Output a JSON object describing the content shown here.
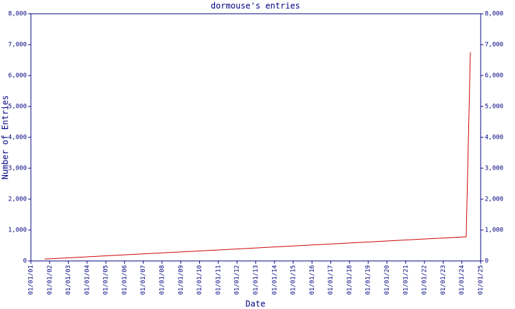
{
  "chart_data": {
    "type": "line",
    "title": "dormouse's entries",
    "x_label": "Date",
    "y_label": "Number of Entries",
    "x": [
      "09/25/01",
      "03/25/24",
      "06/14/24"
    ],
    "series": [
      {
        "name": "entries",
        "color": "#cc0000",
        "values": [
          60,
          780,
          6750
        ]
      }
    ],
    "xlim": [
      "01/01/01",
      "01/01/25"
    ],
    "xticks": [
      "01/01/01",
      "01/01/02",
      "01/01/03",
      "01/01/04",
      "01/01/05",
      "01/01/06",
      "01/01/07",
      "01/01/08",
      "01/01/09",
      "01/01/10",
      "01/01/11",
      "01/01/12",
      "01/01/13",
      "01/01/14",
      "01/01/15",
      "01/01/16",
      "01/01/17",
      "01/01/18",
      "01/01/19",
      "01/01/20",
      "01/01/21",
      "01/01/22",
      "01/01/23",
      "01/01/24",
      "01/01/25"
    ],
    "ylim": [
      0,
      8000
    ],
    "yticks": [
      0,
      {
        "value": 1000,
        "label": "1,000"
      },
      {
        "value": 2000,
        "label": "2,000"
      },
      {
        "value": 3000,
        "label": "3,000"
      },
      {
        "value": 4000,
        "label": "4,000"
      },
      {
        "value": 5000,
        "label": "5,000"
      },
      {
        "value": 6000,
        "label": "6,000"
      },
      {
        "value": 7000,
        "label": "7,000"
      },
      {
        "value": 8000,
        "label": "8,000"
      }
    ],
    "y2lim": [
      0,
      8000
    ],
    "y2ticks": [
      0,
      {
        "value": 1000,
        "label": "1,000"
      },
      {
        "value": 2000,
        "label": "2,000"
      },
      {
        "value": 3000,
        "label": "3,000"
      },
      {
        "value": 4000,
        "label": "4,000"
      },
      {
        "value": 5000,
        "label": "5,000"
      },
      {
        "value": 6000,
        "label": "6,000"
      },
      {
        "value": 7000,
        "label": "7,000"
      },
      {
        "value": 8000,
        "label": "8,000"
      }
    ],
    "axis_color": "#000080"
  }
}
